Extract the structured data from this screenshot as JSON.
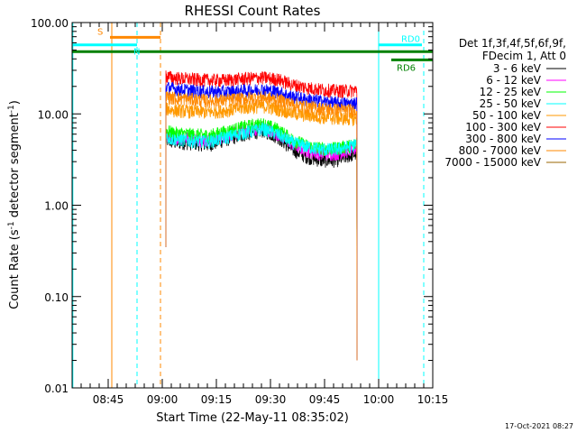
{
  "chart_data": {
    "type": "line",
    "title": "RHESSI Count Rates",
    "xlabel": "Start Time (22-May-11 08:35:02)",
    "ylabel_parts": [
      "Count Rate (s",
      "-1",
      " detector segment",
      "-1",
      ")"
    ],
    "yscale": "log",
    "xlim_minutes": [
      35,
      135
    ],
    "ylim": [
      0.01,
      100
    ],
    "x_ticks": [
      {
        "label": "08:45",
        "minute": 45
      },
      {
        "label": "09:00",
        "minute": 60
      },
      {
        "label": "09:15",
        "minute": 75
      },
      {
        "label": "09:30",
        "minute": 90
      },
      {
        "label": "09:45",
        "minute": 105
      },
      {
        "label": "10:00",
        "minute": 120
      },
      {
        "label": "10:15",
        "minute": 135
      }
    ],
    "y_ticks": [
      {
        "label": "100.00",
        "value": 100
      },
      {
        "label": "10.00",
        "value": 10
      },
      {
        "label": "1.00",
        "value": 1
      },
      {
        "label": "0.10",
        "value": 0.1
      },
      {
        "label": "0.01",
        "value": 0.01
      }
    ],
    "legend_header": [
      "Det 1f,3f,4f,5f,6f,9f,",
      "FDecim 1, Att 0"
    ],
    "series": [
      {
        "name": "3 - 6 keV",
        "color": "#000000",
        "points": [
          [
            61,
            5.2
          ],
          [
            63,
            4.9
          ],
          [
            68,
            4.8
          ],
          [
            73,
            4.6
          ],
          [
            78,
            5.3
          ],
          [
            83,
            6.0
          ],
          [
            88,
            6.6
          ],
          [
            92,
            5.6
          ],
          [
            96,
            4.1
          ],
          [
            100,
            3.4
          ],
          [
            104,
            3.1
          ],
          [
            108,
            3.1
          ],
          [
            112,
            3.5
          ],
          [
            114,
            3.7
          ]
        ]
      },
      {
        "name": "6 - 12 keV",
        "color": "#ff00ff",
        "points": [
          [
            61,
            5.9
          ],
          [
            63,
            5.6
          ],
          [
            68,
            5.4
          ],
          [
            73,
            5.2
          ],
          [
            78,
            5.9
          ],
          [
            83,
            6.6
          ],
          [
            88,
            7.2
          ],
          [
            92,
            6.1
          ],
          [
            96,
            4.7
          ],
          [
            100,
            4.0
          ],
          [
            104,
            3.7
          ],
          [
            108,
            3.7
          ],
          [
            112,
            4.0
          ],
          [
            114,
            4.2
          ]
        ]
      },
      {
        "name": "12 - 25 keV",
        "color": "#00ff00",
        "points": [
          [
            61,
            6.6
          ],
          [
            63,
            6.2
          ],
          [
            68,
            6.0
          ],
          [
            73,
            5.8
          ],
          [
            78,
            6.5
          ],
          [
            83,
            7.3
          ],
          [
            88,
            7.8
          ],
          [
            92,
            6.8
          ],
          [
            96,
            5.3
          ],
          [
            100,
            4.5
          ],
          [
            104,
            4.2
          ],
          [
            108,
            4.2
          ],
          [
            112,
            4.5
          ],
          [
            114,
            4.7
          ]
        ]
      },
      {
        "name": "25 - 50 keV",
        "color": "#00ffff",
        "points": [
          [
            61,
            5.6
          ],
          [
            63,
            5.3
          ],
          [
            68,
            5.1
          ],
          [
            73,
            5.0
          ],
          [
            78,
            5.6
          ],
          [
            83,
            6.3
          ],
          [
            88,
            6.9
          ],
          [
            92,
            6.0
          ],
          [
            96,
            4.9
          ],
          [
            100,
            4.4
          ],
          [
            104,
            4.1
          ],
          [
            108,
            4.1
          ],
          [
            112,
            4.4
          ],
          [
            114,
            4.8
          ]
        ]
      },
      {
        "name": "50 - 100 keV",
        "color": "#ff9900",
        "points": [
          [
            61,
            11.5
          ],
          [
            63,
            11.0
          ],
          [
            68,
            10.7
          ],
          [
            73,
            10.5
          ],
          [
            78,
            11.0
          ],
          [
            83,
            11.8
          ],
          [
            88,
            12.2
          ],
          [
            92,
            11.3
          ],
          [
            96,
            10.3
          ],
          [
            100,
            9.7
          ],
          [
            104,
            9.3
          ],
          [
            108,
            9.0
          ],
          [
            112,
            8.9
          ],
          [
            114,
            8.9
          ]
        ]
      },
      {
        "name": "100 - 300 keV",
        "color": "#ff0000",
        "points": [
          [
            61,
            26
          ],
          [
            63,
            25
          ],
          [
            68,
            24
          ],
          [
            73,
            23.5
          ],
          [
            78,
            23.5
          ],
          [
            83,
            24.5
          ],
          [
            88,
            25
          ],
          [
            92,
            24
          ],
          [
            96,
            21
          ],
          [
            100,
            19.5
          ],
          [
            104,
            18.5
          ],
          [
            108,
            18
          ],
          [
            112,
            18
          ],
          [
            114,
            18.3
          ]
        ]
      },
      {
        "name": "300 - 800 keV",
        "color": "#0000ff",
        "points": [
          [
            61,
            19.5
          ],
          [
            63,
            19
          ],
          [
            68,
            18
          ],
          [
            73,
            17.5
          ],
          [
            78,
            17.5
          ],
          [
            83,
            18
          ],
          [
            88,
            18.5
          ],
          [
            92,
            17.5
          ],
          [
            96,
            15.5
          ],
          [
            100,
            14.5
          ],
          [
            104,
            13.8
          ],
          [
            108,
            13.2
          ],
          [
            112,
            13
          ],
          [
            114,
            13.3
          ]
        ]
      },
      {
        "name": "800 - 7000 keV",
        "color": "#ff8800",
        "points": [
          [
            61,
            15.5
          ],
          [
            63,
            15
          ],
          [
            68,
            14.5
          ],
          [
            73,
            14
          ],
          [
            78,
            14.2
          ],
          [
            83,
            14.8
          ],
          [
            88,
            15.2
          ],
          [
            92,
            14.3
          ],
          [
            96,
            13
          ],
          [
            100,
            12
          ],
          [
            104,
            11.5
          ],
          [
            108,
            11.2
          ],
          [
            112,
            11
          ],
          [
            114,
            11.2
          ]
        ]
      },
      {
        "name": "7000 - 15000 keV",
        "color": "#996600",
        "points": []
      }
    ],
    "annotations": [
      {
        "label": "S",
        "color": "#ff8800",
        "bar": [
          45.5,
          59.5
        ],
        "y": 69
      },
      {
        "label": "N",
        "color": "#00ffff",
        "bar": [
          35,
          53
        ],
        "y": 57
      },
      {
        "label": "RD0",
        "color": "#00ffff",
        "bar": [
          120,
          132
        ],
        "y": 57
      },
      {
        "label": "RD6",
        "color": "#008000",
        "bar": [
          123.5,
          135
        ],
        "y": 39
      }
    ],
    "timestamp": "17-Oct-2021 08:27"
  }
}
